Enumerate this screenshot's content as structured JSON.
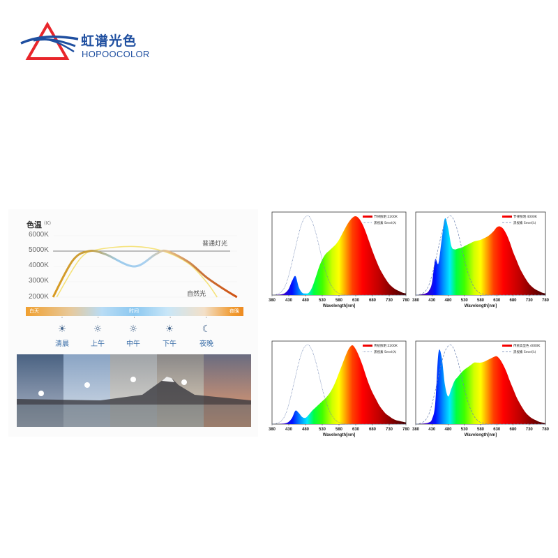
{
  "logo": {
    "name_cn": "虹谱光色",
    "name_en": "HOPOOCOLOR",
    "colors": {
      "triangle": "#e8262b",
      "stripes": "#1f4fa0"
    }
  },
  "cct_chart": {
    "ylabel": "色温",
    "yunit": "(K)",
    "yticks": [
      "6000K",
      "5000K",
      "4000K",
      "3000K",
      "2000K"
    ],
    "bar_labels": {
      "left": "白天",
      "center": "时间",
      "right": "夜晚"
    },
    "periods": [
      {
        "label": "清晨",
        "icon": "sunrise-icon"
      },
      {
        "label": "上午",
        "icon": "sun-small-icon"
      },
      {
        "label": "中午",
        "icon": "sun-icon"
      },
      {
        "label": "下午",
        "icon": "sunset-icon"
      },
      {
        "label": "夜晚",
        "icon": "moon-icon"
      }
    ],
    "annotations": {
      "regular": "普通灯光",
      "natural": "自然光"
    }
  },
  "chart_data": [
    {
      "type": "line",
      "ylabel": "色温 (K)",
      "ylim": [
        2000,
        6000
      ],
      "categories": [
        "清晨",
        "上午",
        "中午",
        "下午",
        "夜晚"
      ],
      "series": [
        {
          "name": "普通灯光",
          "color": "#999999",
          "points": [
            [
              -0.25,
              5000
            ],
            [
              4.7,
              5000
            ]
          ]
        },
        {
          "name": "自然光",
          "color": "#f5e27a",
          "points": [
            [
              -0.15,
              2000
            ],
            [
              0.5,
              4500
            ],
            [
              1,
              5100
            ],
            [
              2,
              5300
            ],
            [
              2.8,
              5000
            ],
            [
              3.5,
              4200
            ],
            [
              4.0,
              3000
            ],
            [
              4.3,
              2000
            ]
          ]
        },
        {
          "color": "gradient orange-blue-orange",
          "points": [
            [
              -0.25,
              2000
            ],
            [
              0.3,
              4400
            ],
            [
              0.75,
              5000
            ],
            [
              1.2,
              4800
            ],
            [
              2,
              4000
            ],
            [
              2.6,
              4800
            ],
            [
              2.9,
              5000
            ],
            [
              3.5,
              4300
            ],
            [
              4,
              3300
            ],
            [
              4.5,
              2500
            ],
            [
              4.85,
              2000
            ]
          ]
        }
      ]
    },
    {
      "type": "area",
      "xlabel": "Wavelength[nm]",
      "xlim": [
        380,
        780
      ],
      "xticks": [
        380,
        430,
        480,
        530,
        580,
        630,
        680,
        730,
        780
      ],
      "legend": [
        "节律照明 2200K",
        "黑视素 Smel(λ)"
      ],
      "legend_position": "top-right",
      "smel_dash": "fine",
      "x_step": 10,
      "spd": [
        0,
        0,
        0.005,
        0.01,
        0.03,
        0.08,
        0.18,
        0.24,
        0.1,
        0.03,
        0.02,
        0.03,
        0.1,
        0.22,
        0.35,
        0.45,
        0.52,
        0.56,
        0.6,
        0.64,
        0.7,
        0.78,
        0.86,
        0.93,
        0.98,
        1.0,
        0.97,
        0.9,
        0.8,
        0.68,
        0.56,
        0.45,
        0.35,
        0.27,
        0.2,
        0.14,
        0.1,
        0.07,
        0.05,
        0.03,
        0.02
      ]
    },
    {
      "type": "area",
      "xlabel": "Wavelength[nm]",
      "xlim": [
        380,
        780
      ],
      "xticks": [
        380,
        430,
        480,
        530,
        580,
        630,
        680,
        730,
        780
      ],
      "legend": [
        "节律照明 4000K",
        "黑视素 Smel(λ)"
      ],
      "legend_position": "top-right",
      "smel_dash": "coarse",
      "x_step": 10,
      "spd": [
        0,
        0,
        0.01,
        0.02,
        0.05,
        0.15,
        0.45,
        0.4,
        0.7,
        0.97,
        0.85,
        0.62,
        0.58,
        0.59,
        0.6,
        0.62,
        0.64,
        0.66,
        0.68,
        0.69,
        0.7,
        0.72,
        0.74,
        0.77,
        0.81,
        0.86,
        0.87,
        0.84,
        0.77,
        0.67,
        0.55,
        0.45,
        0.35,
        0.27,
        0.2,
        0.14,
        0.1,
        0.07,
        0.05,
        0.03,
        0.02
      ]
    },
    {
      "type": "area",
      "xlabel": "Wavelength[nm]",
      "xlim": [
        380,
        780
      ],
      "xticks": [
        380,
        430,
        480,
        530,
        580,
        630,
        680,
        730,
        780
      ],
      "legend": [
        "传统照明 2200K",
        "黑视素 Smel(λ)"
      ],
      "legend_position": "top-right",
      "smel_dash": "fine",
      "x_step": 10,
      "spd": [
        0,
        0,
        0,
        0.005,
        0.01,
        0.03,
        0.08,
        0.17,
        0.14,
        0.09,
        0.08,
        0.12,
        0.17,
        0.21,
        0.25,
        0.29,
        0.33,
        0.38,
        0.45,
        0.54,
        0.65,
        0.76,
        0.87,
        0.96,
        1.0,
        0.95,
        0.86,
        0.75,
        0.62,
        0.5,
        0.4,
        0.32,
        0.24,
        0.18,
        0.13,
        0.1,
        0.07,
        0.05,
        0.04,
        0.03,
        0.02
      ]
    },
    {
      "type": "area",
      "xlabel": "Wavelength[nm]",
      "xlim": [
        380,
        780
      ],
      "xticks": [
        380,
        430,
        480,
        530,
        580,
        630,
        680,
        730,
        780
      ],
      "legend": [
        "传统高显色 4000K",
        "黑视素 Smel(λ)"
      ],
      "legend_position": "top-right",
      "smel_dash": "coarse",
      "x_step": 10,
      "spd": [
        0,
        0,
        0.005,
        0.01,
        0.02,
        0.06,
        0.25,
        0.9,
        0.85,
        0.5,
        0.35,
        0.45,
        0.55,
        0.6,
        0.65,
        0.69,
        0.72,
        0.75,
        0.78,
        0.78,
        0.78,
        0.79,
        0.81,
        0.83,
        0.85,
        0.86,
        0.82,
        0.75,
        0.66,
        0.55,
        0.45,
        0.35,
        0.27,
        0.2,
        0.14,
        0.1,
        0.07,
        0.05,
        0.03,
        0.02,
        0.01
      ]
    }
  ],
  "smel_curve": {
    "x_start": 380,
    "x_step": 10,
    "values": [
      0,
      0.005,
      0.02,
      0.05,
      0.12,
      0.25,
      0.42,
      0.6,
      0.78,
      0.92,
      0.99,
      1.0,
      0.93,
      0.8,
      0.63,
      0.45,
      0.3,
      0.18,
      0.1,
      0.05,
      0.02,
      0.01,
      0,
      0,
      0,
      0,
      0,
      0,
      0,
      0,
      0,
      0,
      0,
      0,
      0,
      0,
      0,
      0,
      0,
      0,
      0
    ]
  }
}
